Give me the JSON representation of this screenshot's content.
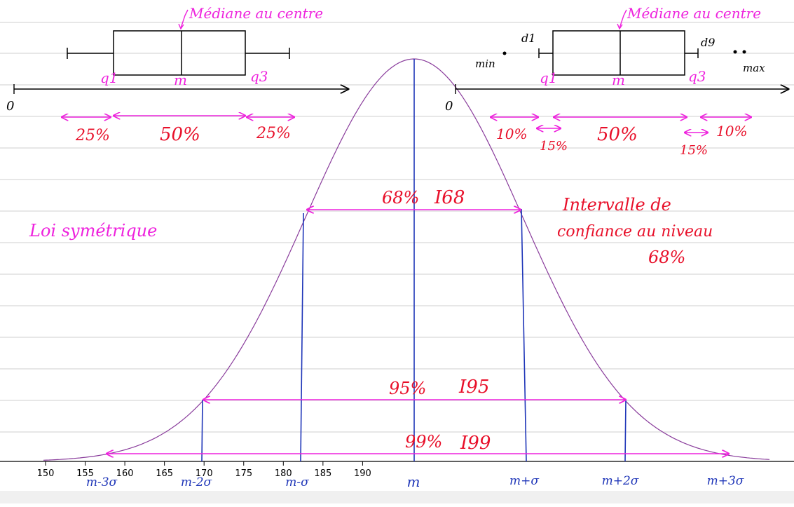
{
  "colors": {
    "magenta": "#ee22dd",
    "red": "#e8102a",
    "blue": "#1e35b8",
    "curve": "#8a3d9c",
    "gridline": "#cfcfcf",
    "axis": "#000000",
    "bottom_band": "#f0f0f0"
  },
  "left_box": {
    "title": "Médiane au centre",
    "q1": "q1",
    "median": "m",
    "q3": "q3",
    "origin": "0",
    "pct_left": "25%",
    "pct_mid": "50%",
    "pct_right": "25%"
  },
  "right_box": {
    "title": "Médiane au centre",
    "d1": "d1",
    "d9": "d9",
    "min": "min",
    "max": "max",
    "q1": "q1",
    "median": "m",
    "q3": "q3",
    "origin": "0",
    "pct_left_outer": "10%",
    "pct_left_inner": "15%",
    "pct_mid": "50%",
    "pct_right_inner": "15%",
    "pct_right_outer": "10%"
  },
  "annotations": {
    "loi": "Loi symétrique",
    "ic_line1": "Intervalle de",
    "ic_line2": "confiance au niveau",
    "ic_line3": "68%",
    "i68_pct": "68%",
    "i68_label": "I68",
    "i95_pct": "95%",
    "i95_label": "I95",
    "i99_pct": "99%",
    "i99_label": "I99"
  },
  "axis": {
    "ticks": [
      "150",
      "155",
      "160",
      "165",
      "170",
      "175",
      "180",
      "185",
      "190"
    ],
    "sigma_labels": [
      "m-3σ",
      "m-2σ",
      "m-σ",
      "m",
      "m+σ",
      "m+2σ",
      "m+3σ"
    ]
  }
}
